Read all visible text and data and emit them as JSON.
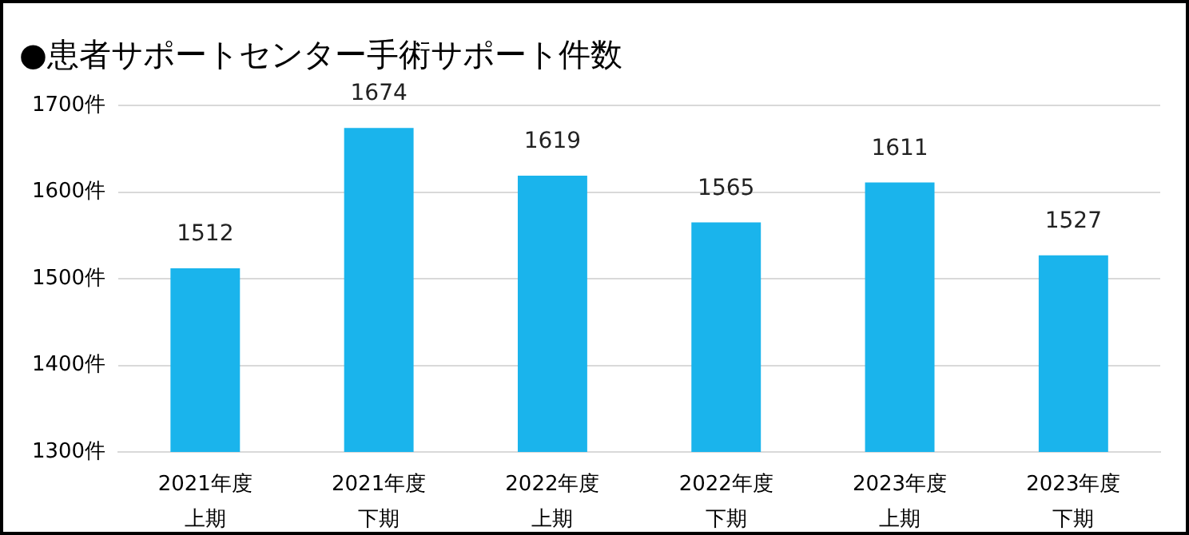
{
  "chart_data": {
    "type": "bar",
    "title": "●患者サポートセンター手術サポート件数",
    "categories": [
      "2021年度上期",
      "2021年度下期",
      "2022年度上期",
      "2022年度下期",
      "2023年度上期",
      "2023年度下期"
    ],
    "values": [
      1512,
      1674,
      1619,
      1565,
      1611,
      1527
    ],
    "color": "#1ab4ec",
    "ylim": [
      1300,
      1700
    ],
    "yticks": [
      {
        "value": 1300,
        "label": "1300件"
      },
      {
        "value": 1400,
        "label": "1400件"
      },
      {
        "value": 1500,
        "label": "1500件"
      },
      {
        "value": 1600,
        "label": "1600件"
      },
      {
        "value": 1700,
        "label": "1700件"
      }
    ],
    "grid": "y",
    "data_labels": true
  }
}
